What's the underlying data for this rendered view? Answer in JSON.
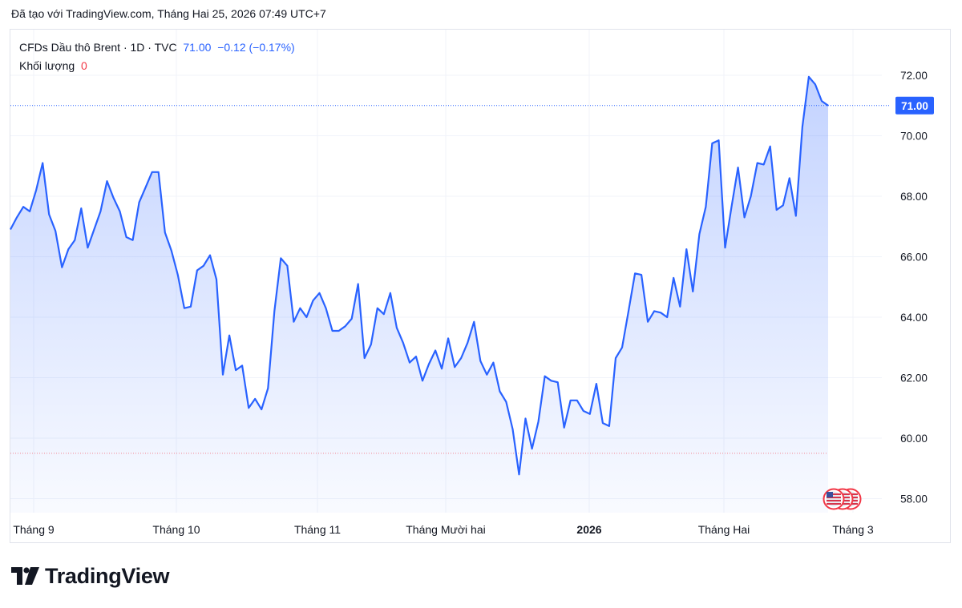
{
  "caption": "Đã tạo với TradingView.com, Tháng Hai 25, 2026 07:49 UTC+7",
  "legend": {
    "symbol": "CFDs Dầu thô Brent · 1D · TVC",
    "last": "71.00",
    "change": "−0.12 (−0.17%)",
    "volume_label": "Khối lượng",
    "volume_value": "0"
  },
  "logo": {
    "text": "TradingView"
  },
  "colors": {
    "line": "#2962ff",
    "fill_top": "#c9d6fb",
    "axis_text": "#131722",
    "grid": "#f0f3fa",
    "dotted_line": "#2962ff",
    "red_dotted": "#f23645"
  },
  "chart_data": {
    "type": "area",
    "x_axis_labels": [
      "Tháng 9",
      "Tháng 10",
      "Tháng 11",
      "Tháng Mười hai",
      "2026",
      "Tháng Hai",
      "Tháng 3"
    ],
    "y_ticks": [
      "72.00",
      "70.00",
      "68.00",
      "66.00",
      "64.00",
      "62.00",
      "60.00",
      "58.00"
    ],
    "ylim": [
      57.5,
      73.2
    ],
    "last_price_label": "71.00",
    "last_price": 71.0,
    "lower_reference_price": 59.5,
    "values": [
      66.9,
      67.3,
      67.65,
      67.5,
      68.2,
      69.1,
      67.4,
      66.85,
      65.65,
      66.25,
      66.55,
      67.6,
      66.3,
      66.9,
      67.5,
      68.5,
      67.95,
      67.5,
      66.65,
      66.55,
      67.8,
      68.3,
      68.8,
      68.8,
      66.8,
      66.2,
      65.4,
      64.3,
      64.35,
      65.55,
      65.7,
      66.05,
      65.25,
      62.1,
      63.4,
      62.25,
      62.4,
      61.0,
      61.3,
      60.95,
      61.65,
      64.2,
      65.95,
      65.7,
      63.85,
      64.3,
      64.0,
      64.55,
      64.8,
      64.3,
      63.55,
      63.55,
      63.7,
      63.95,
      65.1,
      62.65,
      63.1,
      64.3,
      64.1,
      64.8,
      63.65,
      63.15,
      62.5,
      62.7,
      61.9,
      62.45,
      62.9,
      62.3,
      63.3,
      62.35,
      62.65,
      63.15,
      63.85,
      62.55,
      62.1,
      62.5,
      61.55,
      61.2,
      60.3,
      58.8,
      60.65,
      59.65,
      60.55,
      62.05,
      61.9,
      61.85,
      60.35,
      61.25,
      61.25,
      60.9,
      60.8,
      61.8,
      60.5,
      60.4,
      62.65,
      63.0,
      64.2,
      65.45,
      65.4,
      63.85,
      64.2,
      64.15,
      64.0,
      65.3,
      64.35,
      66.25,
      64.85,
      66.75,
      67.65,
      69.75,
      69.85,
      66.3,
      67.65,
      68.95,
      67.3,
      68.0,
      69.1,
      69.05,
      69.65,
      67.55,
      67.7,
      68.6,
      67.35,
      70.3,
      71.95,
      71.7,
      71.15,
      71.0
    ]
  }
}
